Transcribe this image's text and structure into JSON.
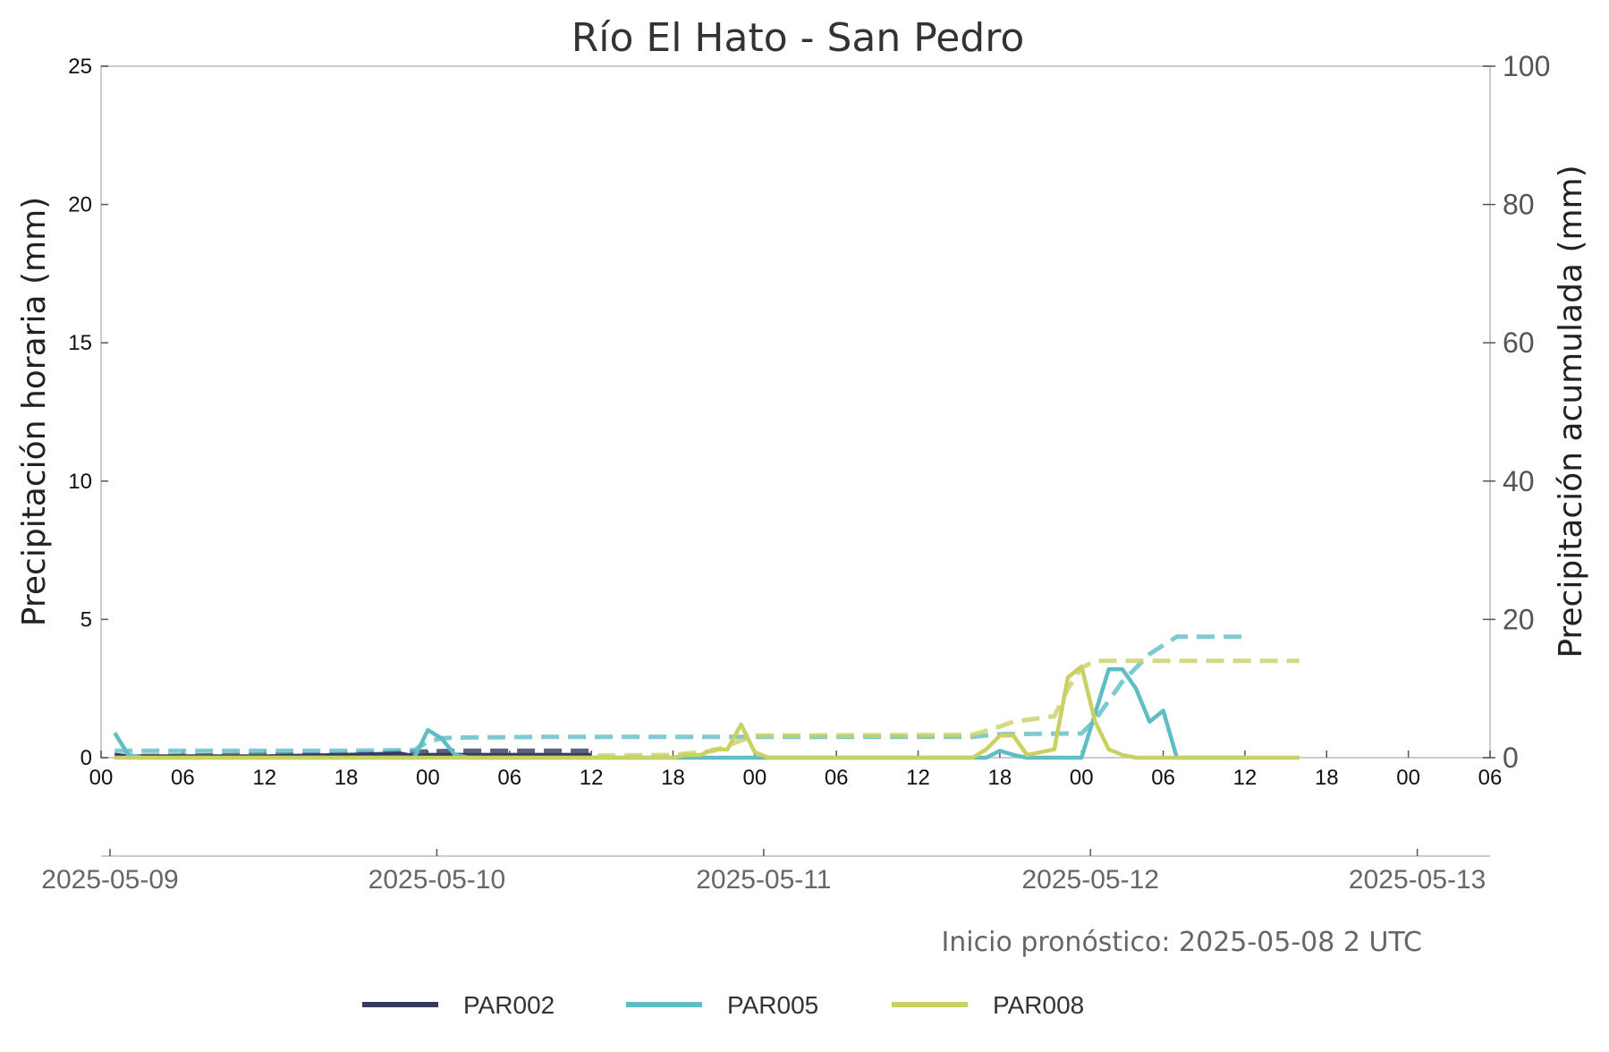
{
  "chart_data": {
    "type": "line",
    "title": "Río El Hato - San Pedro",
    "ylabel_left": "Precipitación horaria (mm)",
    "ylabel_right": "Precipitación acumulada (mm)",
    "ylim_left": [
      0,
      25
    ],
    "ylim_right": [
      0,
      100
    ],
    "yticks_left": [
      "0",
      "5",
      "10",
      "15",
      "20",
      "25"
    ],
    "yticks_right": [
      "0",
      "20",
      "40",
      "60",
      "80",
      "100"
    ],
    "x_range_hours": [
      0,
      102
    ],
    "hour_tick_labels": [
      "00",
      "06",
      "12",
      "18",
      "00",
      "06",
      "12",
      "18",
      "00",
      "06",
      "12",
      "18",
      "00",
      "06",
      "12",
      "18",
      "00",
      "06"
    ],
    "date_tick_labels": [
      "2025-05-09",
      "2025-05-10",
      "2025-05-11",
      "2025-05-12",
      "2025-05-13"
    ],
    "grid": false,
    "legend_position": "bottom",
    "annotation": "Inicio pronóstico: 2025-05-08 2 UTC",
    "series": [
      {
        "name": "PAR002",
        "color": "#363a5c",
        "hourly": [
          [
            1,
            0.1
          ],
          [
            2,
            0.05
          ],
          [
            6,
            0.05
          ],
          [
            12,
            0.05
          ],
          [
            18,
            0.1
          ],
          [
            22,
            0.15
          ],
          [
            23,
            0.05
          ],
          [
            24,
            0.1
          ],
          [
            26,
            0.1
          ],
          [
            30,
            0.1
          ],
          [
            36,
            0.1
          ]
        ],
        "accumulated": [
          [
            1,
            0.2
          ],
          [
            6,
            0.3
          ],
          [
            12,
            0.4
          ],
          [
            18,
            0.5
          ],
          [
            22,
            0.8
          ],
          [
            26,
            1.0
          ],
          [
            30,
            1.0
          ],
          [
            36,
            1.0
          ]
        ]
      },
      {
        "name": "PAR005",
        "color": "#5fbdc6",
        "hourly": [
          [
            1,
            0.9
          ],
          [
            2,
            0.1
          ],
          [
            3,
            0.0
          ],
          [
            23,
            0.0
          ],
          [
            24,
            1.0
          ],
          [
            25,
            0.7
          ],
          [
            26,
            0.1
          ],
          [
            27,
            0.0
          ],
          [
            65,
            0.0
          ],
          [
            66,
            0.25
          ],
          [
            67,
            0.1
          ],
          [
            68,
            0.0
          ],
          [
            72,
            0.0
          ],
          [
            73,
            1.6
          ],
          [
            74,
            3.2
          ],
          [
            75,
            3.2
          ],
          [
            76,
            2.5
          ],
          [
            77,
            1.3
          ],
          [
            78,
            1.7
          ],
          [
            79,
            0.0
          ],
          [
            84,
            0.0
          ]
        ],
        "accumulated": [
          [
            1,
            1.0
          ],
          [
            6,
            1.0
          ],
          [
            12,
            1.0
          ],
          [
            18,
            1.0
          ],
          [
            23,
            1.1
          ],
          [
            24,
            2.3
          ],
          [
            25,
            2.8
          ],
          [
            26,
            2.9
          ],
          [
            32,
            3.0
          ],
          [
            48,
            3.0
          ],
          [
            64,
            3.0
          ],
          [
            66,
            3.4
          ],
          [
            72,
            3.5
          ],
          [
            73,
            5.5
          ],
          [
            75,
            11.0
          ],
          [
            77,
            15.0
          ],
          [
            79,
            17.5
          ],
          [
            84,
            17.5
          ]
        ]
      },
      {
        "name": "PAR008",
        "color": "#c9d064",
        "hourly": [
          [
            1,
            0.0
          ],
          [
            42,
            0.0
          ],
          [
            43,
            0.1
          ],
          [
            44,
            0.1
          ],
          [
            45,
            0.3
          ],
          [
            46,
            0.3
          ],
          [
            47,
            1.2
          ],
          [
            48,
            0.2
          ],
          [
            49,
            0.0
          ],
          [
            64,
            0.0
          ],
          [
            65,
            0.3
          ],
          [
            66,
            0.8
          ],
          [
            67,
            0.8
          ],
          [
            68,
            0.1
          ],
          [
            70,
            0.3
          ],
          [
            71,
            2.9
          ],
          [
            72,
            3.3
          ],
          [
            73,
            1.3
          ],
          [
            74,
            0.3
          ],
          [
            75,
            0.1
          ],
          [
            76,
            0.0
          ],
          [
            88,
            0.0
          ]
        ],
        "accumulated": [
          [
            1,
            0.2
          ],
          [
            36,
            0.3
          ],
          [
            42,
            0.4
          ],
          [
            45,
            1.0
          ],
          [
            47,
            2.5
          ],
          [
            48,
            3.2
          ],
          [
            64,
            3.3
          ],
          [
            66,
            4.5
          ],
          [
            67,
            5.2
          ],
          [
            70,
            6.0
          ],
          [
            71,
            10.0
          ],
          [
            72,
            13.0
          ],
          [
            73,
            14.0
          ],
          [
            76,
            14.0
          ],
          [
            88,
            14.0
          ]
        ]
      }
    ]
  }
}
